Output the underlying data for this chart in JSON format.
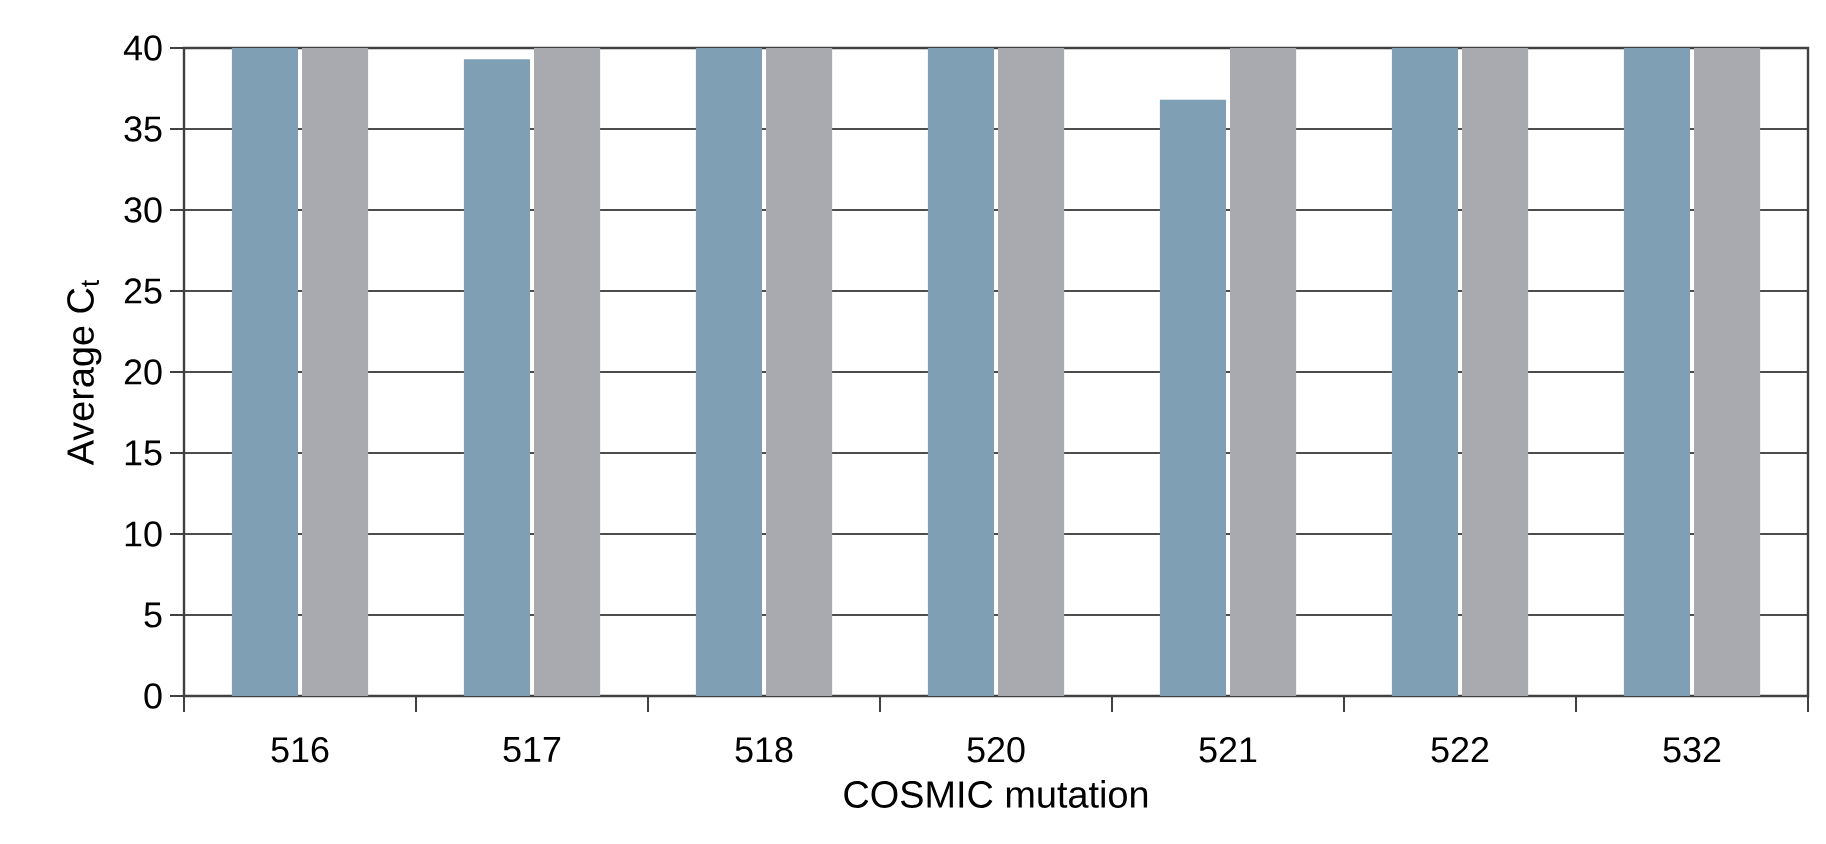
{
  "chart_data": {
    "type": "bar",
    "xlabel": "COSMIC mutation",
    "ylabel": "Average C$_{t}$",
    "categories": [
      "516",
      "517",
      "518",
      "520",
      "521",
      "522",
      "532"
    ],
    "series": [
      {
        "color": "#7f9fb4",
        "values": [
          40,
          39.3,
          40,
          40,
          36.8,
          40,
          40
        ]
      },
      {
        "color": "#a9aaaf",
        "values": [
          40,
          40,
          40,
          40,
          40,
          40,
          40
        ]
      }
    ],
    "ylim": [
      0,
      40
    ],
    "yticks": [
      0,
      5,
      10,
      15,
      20,
      25,
      30,
      35,
      40
    ],
    "grid": "y"
  }
}
